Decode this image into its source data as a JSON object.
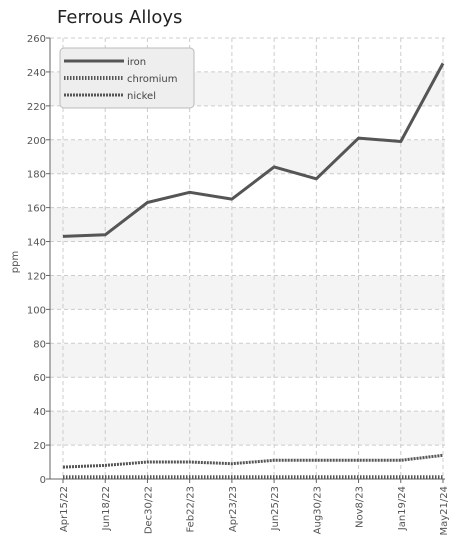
{
  "chart_data": {
    "type": "line",
    "title": "Ferrous Alloys",
    "xlabel": "",
    "ylabel": "ppm",
    "ylim": [
      0,
      260
    ],
    "yticks": [
      0,
      20,
      40,
      60,
      80,
      100,
      120,
      140,
      160,
      180,
      200,
      220,
      240,
      260
    ],
    "x": [
      "Apr15/22",
      "Jun18/22",
      "Dec30/22",
      "Feb22/23",
      "Apr23/23",
      "Jun25/23",
      "Aug30/23",
      "Nov8/23",
      "Jan19/24",
      "May21/24"
    ],
    "series": [
      {
        "name": "iron",
        "values": [
          143,
          144,
          163,
          169,
          165,
          184,
          177,
          201,
          199,
          245
        ]
      },
      {
        "name": "chromium",
        "values": [
          1,
          1,
          1,
          1,
          1,
          1,
          1,
          1,
          1,
          1
        ]
      },
      {
        "name": "nickel",
        "values": [
          7,
          8,
          10,
          10,
          9,
          11,
          11,
          11,
          11,
          14
        ]
      }
    ],
    "legend_position": "top-left",
    "grid": true,
    "colors": {
      "line": "#555555",
      "grid": "#cccccc",
      "band": "#f4f4f4"
    }
  }
}
